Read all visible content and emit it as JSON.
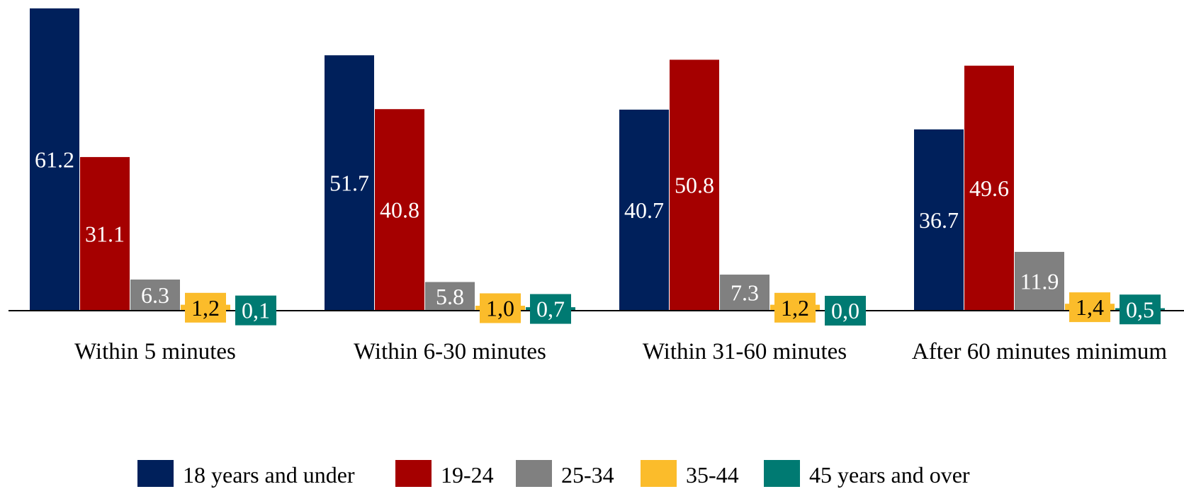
{
  "chart_data": {
    "type": "bar",
    "title": "",
    "xlabel": "",
    "ylabel": "",
    "ylim": [
      0,
      62
    ],
    "grid": false,
    "legend_position": "bottom",
    "categories": [
      "Within 5 minutes",
      "Within 6-30 minutes",
      "Within 31-60 minutes",
      "After 60 minutes minimum"
    ],
    "series": [
      {
        "name": "18 years and under",
        "color": "#00205b",
        "label_color": "#ffffff",
        "values": [
          61.2,
          51.7,
          40.7,
          36.7
        ],
        "labels": [
          "61.2",
          "51.7",
          "40.7",
          "36.7"
        ]
      },
      {
        "name": "19-24",
        "color": "#a50000",
        "label_color": "#ffffff",
        "values": [
          31.1,
          40.8,
          50.8,
          49.6
        ],
        "labels": [
          "31.1",
          "40.8",
          "50.8",
          "49.6"
        ]
      },
      {
        "name": "25-34",
        "color": "#808080",
        "label_color": "#ffffff",
        "values": [
          6.3,
          5.8,
          7.3,
          11.9
        ],
        "labels": [
          "6.3",
          "5.8",
          "7.3",
          "11.9"
        ]
      },
      {
        "name": "35-44",
        "color": "#fbbc2b",
        "label_color": "#000000",
        "values": [
          1.2,
          1.0,
          1.2,
          1.4
        ],
        "labels": [
          "1,2",
          "1,0",
          "1,2",
          "1,4"
        ]
      },
      {
        "name": "45 years and over",
        "color": "#007a72",
        "label_color": "#ffffff",
        "values": [
          0.1,
          0.7,
          0.0,
          0.5
        ],
        "labels": [
          "0,1",
          "0,7",
          "0,0",
          "0,5"
        ]
      }
    ]
  }
}
